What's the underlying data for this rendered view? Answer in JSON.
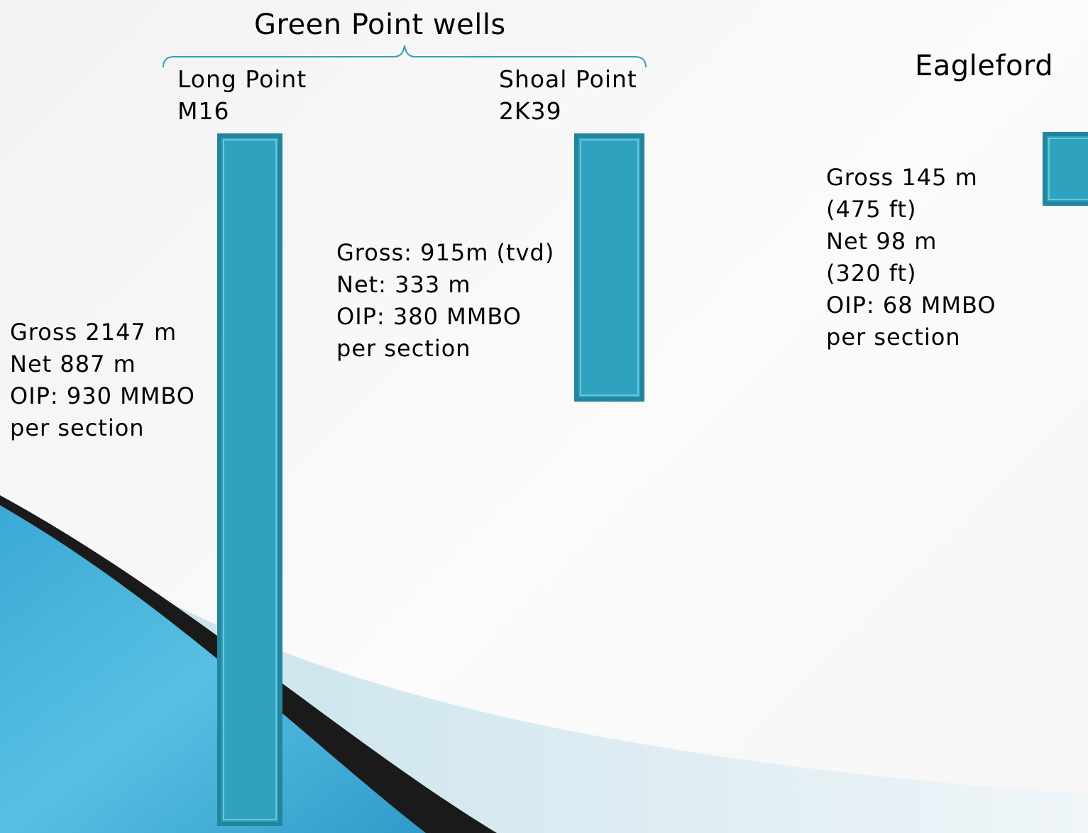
{
  "title": "Green Point wells",
  "eagleford": {
    "title": "Eagleford",
    "stats": [
      "Gross 145 m",
      "(475 ft)",
      "Net 98 m",
      "(320 ft)",
      "OIP: 68 MMBO",
      "per section"
    ]
  },
  "wells": [
    {
      "name": "Long Point",
      "id": "M16",
      "stats": [
        "Gross 2147 m",
        "Net 887 m",
        "OIP: 930 MMBO",
        "per section"
      ]
    },
    {
      "name": "Shoal Point",
      "id": "2K39",
      "stats": [
        "Gross: 915m (tvd)",
        "Net: 333 m",
        "OIP:  380 MMBO",
        "per section"
      ]
    }
  ],
  "colors": {
    "column_fill": "#2ea2bf",
    "column_border": "#21859d",
    "brace": "#2ea2bf"
  }
}
